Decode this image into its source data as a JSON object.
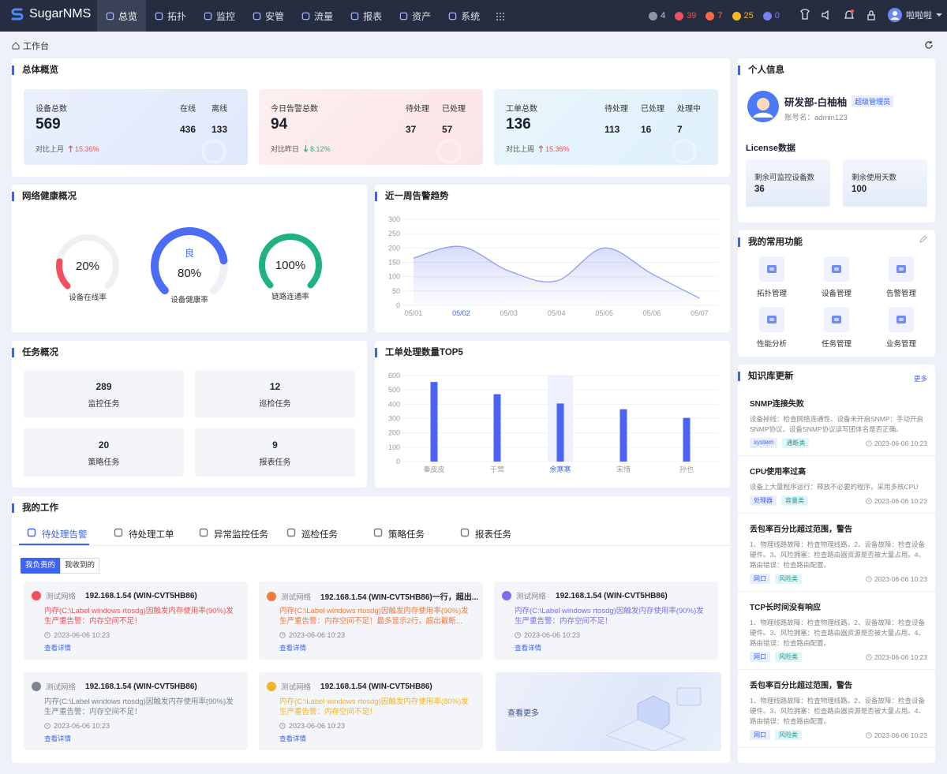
{
  "nav": {
    "brand": "SugarNMS",
    "menu": [
      "总览",
      "拓扑",
      "监控",
      "安管",
      "流量",
      "报表",
      "资产",
      "系统"
    ],
    "alerts": [
      {
        "count": 4,
        "color": "#8d95a8"
      },
      {
        "count": 39,
        "color": "#f0505a"
      },
      {
        "count": 7,
        "color": "#f26b4a"
      },
      {
        "count": 25,
        "color": "#f5b722"
      },
      {
        "count": 0,
        "color": "#7b7ff7"
      }
    ],
    "user": "啦啦啦"
  },
  "breadcrumb": "工作台",
  "overview": {
    "title": "总体概览",
    "cards": [
      {
        "label": "设备总数",
        "total": 569,
        "compare": "对比上月",
        "trend": "up",
        "change": "15.36%",
        "stats": [
          {
            "label": "在线",
            "value": 436
          },
          {
            "label": "离线",
            "value": 133
          }
        ]
      },
      {
        "label": "今日告警总数",
        "total": 94,
        "compare": "对比昨日",
        "trend": "down",
        "change": "8.12%",
        "stats": [
          {
            "label": "待处理",
            "value": 37
          },
          {
            "label": "已处理",
            "value": 57
          }
        ]
      },
      {
        "label": "工单总数",
        "total": 136,
        "compare": "对比上周",
        "trend": "up",
        "change": "15.36%",
        "stats": [
          {
            "label": "待处理",
            "value": 113
          },
          {
            "label": "已处理",
            "value": 16
          },
          {
            "label": "处理中",
            "value": 7
          }
        ]
      }
    ]
  },
  "health": {
    "title": "网络健康概况",
    "gauges": [
      {
        "name": "设备在线率",
        "value": 20,
        "value_label": "20%",
        "color": "#f0505f"
      },
      {
        "name": "设备健康率",
        "grade": "良",
        "value": 80,
        "value_label": "80%",
        "color": "#4a6cf7"
      },
      {
        "name": "链路连通率",
        "value": 100,
        "value_label": "100%",
        "color": "#1db27e"
      }
    ]
  },
  "alarm_trend": {
    "type": "line",
    "title": "近一周告警趋势",
    "categories": [
      "05/01",
      "05/02",
      "05/03",
      "05/04",
      "05/05",
      "05/06",
      "05/07"
    ],
    "values": [
      165,
      205,
      120,
      85,
      200,
      110,
      25
    ],
    "color": "#8c9cf2",
    "ylim": [
      0,
      300
    ],
    "yticks": [
      0,
      50,
      100,
      150,
      200,
      250,
      300
    ],
    "grid": true
  },
  "tasks": {
    "title": "任务概况",
    "items": [
      {
        "value": 289,
        "label": "监控任务"
      },
      {
        "value": 12,
        "label": "巡检任务"
      },
      {
        "value": 20,
        "label": "策略任务"
      },
      {
        "value": 9,
        "label": "报表任务"
      }
    ]
  },
  "ticket_top5": {
    "type": "bar",
    "title": "工单处理数量TOP5",
    "categories": [
      "秦皮皮",
      "于莺",
      "余寒寒",
      "宋惜",
      "孙也"
    ],
    "values": [
      555,
      470,
      405,
      365,
      305
    ],
    "color": "#4b63f2",
    "ylim": [
      0,
      600
    ],
    "yticks": [
      0,
      100,
      200,
      300,
      400,
      500,
      600
    ],
    "grid": true
  },
  "my_work": {
    "title": "我的工作",
    "tabs": [
      "待处理告警",
      "待处理工单",
      "异常监控任务",
      "巡检任务",
      "策略任务",
      "报表任务"
    ],
    "filters": [
      "我负责的",
      "我收到的"
    ],
    "alarms": [
      {
        "color": "#f0505a",
        "network": "测试网络",
        "host": "192.168.1.54 (WIN-CVT5HB86)",
        "message": "内存(C:\\Label windows rtosdg)因触发内存使用率(90%)发生严重告警：内存空间不足！",
        "time": "2023-06-06 10:23",
        "link": "查看详情"
      },
      {
        "color": "#f2793f",
        "network": "测试网络",
        "host": "192.168.1.54 (WIN-CVT5HB86)一行，超出...",
        "message": "内存(C:\\Label windows rtosdg)因触发内存使用率(90%)发生严重告警：内存空间不足！最多显示2行，超出截断...",
        "time": "2023-06-06 10:23",
        "link": "查看详情"
      },
      {
        "color": "#7b6cf2",
        "network": "测试网络",
        "host": "192.168.1.54 (WIN-CVT5HB86)",
        "message": "内存(C:\\Label windows rtosdg)因触发内存使用率(90%)发生严重告警：内存空间不足！",
        "time": "2023-06-06 10:23",
        "link": "查看详情"
      },
      {
        "color": "#7d838f",
        "network": "测试网络",
        "host": "192.168.1.54 (WIN-CVT5HB86)",
        "message": "内存(C:\\Label windows rtosdg)因触发内存使用率(90%)发生严重告警：内存空间不足！",
        "time": "2023-06-06 10:23",
        "link": "查看详情"
      },
      {
        "color": "#f3b422",
        "network": "测试网络",
        "host": "192.168.1.54 (WIN-CVT5HB86)",
        "message": "内存(C:\\Label windows rtosdg)因触发内存使用率(80%)发生严重告警：内存空间不足！",
        "time": "2023-06-06 10:23",
        "link": "查看详情"
      }
    ],
    "more": "查看更多"
  },
  "profile": {
    "title": "个人信息",
    "name": "研发部-白柚柚",
    "role": "超级管理员",
    "account": "账号名：admin123",
    "license_title": "License数据",
    "license": [
      {
        "label": "剩余可监控设备数",
        "value": 36
      },
      {
        "label": "剩余使用天数",
        "value": 100
      }
    ]
  },
  "functions": {
    "title": "我的常用功能",
    "items": [
      "拓扑管理",
      "设备管理",
      "告警管理",
      "性能分析",
      "任务管理",
      "业务管理"
    ]
  },
  "knowledge": {
    "title": "知识库更新",
    "more": "更多",
    "items": [
      {
        "title": "SNMP连接失败",
        "desc": "设备掉线：检查网络连通性、设备未开启SNMP：手动开启SNMP协议、设备SNMP协议读写团体名是否正确。",
        "tags": [
          "system",
          "通断类"
        ],
        "time": "2023-06-06 10:23"
      },
      {
        "title": "CPU使用率过高",
        "desc": "设备上大量程序运行：释放不必要的程序，采用多核CPU",
        "tags": [
          "处理器",
          "容量类"
        ],
        "time": "2023-06-06 10:23"
      },
      {
        "title": "丢包率百分比超过范围，警告",
        "desc": "1、物理线路故障：检查物理线路。2、设备故障：检查设备硬件。3、风险拥塞：检查路由器资源是否被大量占用。4、路由错误：检查路由配置。",
        "tags": [
          "网口",
          "风险类"
        ],
        "time": "2023-06-06 10:23"
      },
      {
        "title": "TCP长时间没有响应",
        "desc": "1、物理线路故障：检查物理线路。2、设备故障：检查设备硬件。3、风险拥塞：检查路由器资源是否被大量占用。4、路由错误：检查路由配置。",
        "tags": [
          "网口",
          "风险类"
        ],
        "time": "2023-06-06 10:23"
      },
      {
        "title": "丢包率百分比超过范围，警告",
        "desc": "1、物理线路故障：检查物理线路。2、设备故障：检查设备硬件。3、风险拥塞：检查路由器资源是否被大量占用。4、路由错误：检查路由配置。",
        "tags": [
          "网口",
          "风险类"
        ],
        "time": "2023-06-06 10:23"
      }
    ]
  }
}
